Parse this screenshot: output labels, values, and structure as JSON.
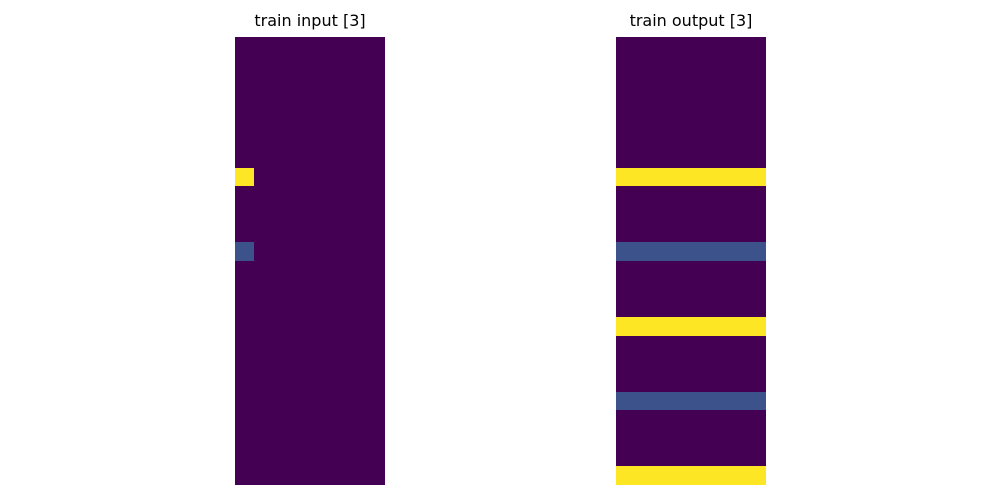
{
  "palette": {
    "0": "#440154",
    "1": "#3b528b",
    "2": "#fde725"
  },
  "panels": [
    {
      "title": "train input [3]",
      "rows": 24,
      "cols": 8,
      "cells": [
        [
          0,
          0,
          0,
          0,
          0,
          0,
          0,
          0
        ],
        [
          0,
          0,
          0,
          0,
          0,
          0,
          0,
          0
        ],
        [
          0,
          0,
          0,
          0,
          0,
          0,
          0,
          0
        ],
        [
          0,
          0,
          0,
          0,
          0,
          0,
          0,
          0
        ],
        [
          0,
          0,
          0,
          0,
          0,
          0,
          0,
          0
        ],
        [
          0,
          0,
          0,
          0,
          0,
          0,
          0,
          0
        ],
        [
          0,
          0,
          0,
          0,
          0,
          0,
          0,
          0
        ],
        [
          2,
          0,
          0,
          0,
          0,
          0,
          0,
          0
        ],
        [
          0,
          0,
          0,
          0,
          0,
          0,
          0,
          0
        ],
        [
          0,
          0,
          0,
          0,
          0,
          0,
          0,
          0
        ],
        [
          0,
          0,
          0,
          0,
          0,
          0,
          0,
          0
        ],
        [
          1,
          0,
          0,
          0,
          0,
          0,
          0,
          0
        ],
        [
          0,
          0,
          0,
          0,
          0,
          0,
          0,
          0
        ],
        [
          0,
          0,
          0,
          0,
          0,
          0,
          0,
          0
        ],
        [
          0,
          0,
          0,
          0,
          0,
          0,
          0,
          0
        ],
        [
          0,
          0,
          0,
          0,
          0,
          0,
          0,
          0
        ],
        [
          0,
          0,
          0,
          0,
          0,
          0,
          0,
          0
        ],
        [
          0,
          0,
          0,
          0,
          0,
          0,
          0,
          0
        ],
        [
          0,
          0,
          0,
          0,
          0,
          0,
          0,
          0
        ],
        [
          0,
          0,
          0,
          0,
          0,
          0,
          0,
          0
        ],
        [
          0,
          0,
          0,
          0,
          0,
          0,
          0,
          0
        ],
        [
          0,
          0,
          0,
          0,
          0,
          0,
          0,
          0
        ],
        [
          0,
          0,
          0,
          0,
          0,
          0,
          0,
          0
        ],
        [
          0,
          0,
          0,
          0,
          0,
          0,
          0,
          0
        ]
      ]
    },
    {
      "title": "train output [3]",
      "rows": 24,
      "cols": 8,
      "cells": [
        [
          0,
          0,
          0,
          0,
          0,
          0,
          0,
          0
        ],
        [
          0,
          0,
          0,
          0,
          0,
          0,
          0,
          0
        ],
        [
          0,
          0,
          0,
          0,
          0,
          0,
          0,
          0
        ],
        [
          0,
          0,
          0,
          0,
          0,
          0,
          0,
          0
        ],
        [
          0,
          0,
          0,
          0,
          0,
          0,
          0,
          0
        ],
        [
          0,
          0,
          0,
          0,
          0,
          0,
          0,
          0
        ],
        [
          0,
          0,
          0,
          0,
          0,
          0,
          0,
          0
        ],
        [
          2,
          2,
          2,
          2,
          2,
          2,
          2,
          2
        ],
        [
          0,
          0,
          0,
          0,
          0,
          0,
          0,
          0
        ],
        [
          0,
          0,
          0,
          0,
          0,
          0,
          0,
          0
        ],
        [
          0,
          0,
          0,
          0,
          0,
          0,
          0,
          0
        ],
        [
          1,
          1,
          1,
          1,
          1,
          1,
          1,
          1
        ],
        [
          0,
          0,
          0,
          0,
          0,
          0,
          0,
          0
        ],
        [
          0,
          0,
          0,
          0,
          0,
          0,
          0,
          0
        ],
        [
          0,
          0,
          0,
          0,
          0,
          0,
          0,
          0
        ],
        [
          2,
          2,
          2,
          2,
          2,
          2,
          2,
          2
        ],
        [
          0,
          0,
          0,
          0,
          0,
          0,
          0,
          0
        ],
        [
          0,
          0,
          0,
          0,
          0,
          0,
          0,
          0
        ],
        [
          0,
          0,
          0,
          0,
          0,
          0,
          0,
          0
        ],
        [
          1,
          1,
          1,
          1,
          1,
          1,
          1,
          1
        ],
        [
          0,
          0,
          0,
          0,
          0,
          0,
          0,
          0
        ],
        [
          0,
          0,
          0,
          0,
          0,
          0,
          0,
          0
        ],
        [
          0,
          0,
          0,
          0,
          0,
          0,
          0,
          0
        ],
        [
          2,
          2,
          2,
          2,
          2,
          2,
          2,
          2
        ]
      ]
    }
  ]
}
